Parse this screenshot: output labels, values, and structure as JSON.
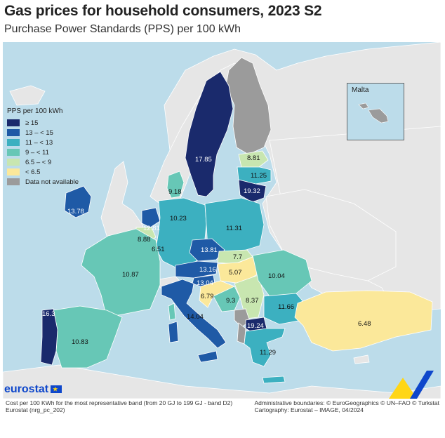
{
  "title": "Gas prices for household consumers, 2023 S2",
  "subtitle": "Purchase Power Standards (PPS) per 100 kWh",
  "legend": {
    "title": "PPS per 100 kWh",
    "items": [
      {
        "label": "≥ 15",
        "color": "#1a2a6c"
      },
      {
        "label": "13 – < 15",
        "color": "#1f5aa6"
      },
      {
        "label": "11 – < 13",
        "color": "#3cb0c0"
      },
      {
        "label": "9 – < 11",
        "color": "#67c7b6"
      },
      {
        "label": "6.5 – < 9",
        "color": "#c8e6b0"
      },
      {
        "label": "< 6.5",
        "color": "#fbe89a"
      },
      {
        "label": "Data not available",
        "color": "#9b9b9b"
      }
    ]
  },
  "inset": {
    "label": "Malta"
  },
  "values": {
    "sweden": "17.85",
    "estonia": "8.81",
    "latvia": "11.25",
    "lithuania": "19.32",
    "denmark": "9.18",
    "ireland": "13.78",
    "netherlands": "12.81",
    "belgium": "8.88",
    "luxembourg": "6.51",
    "germany": "10.23",
    "poland": "11.31",
    "czechia": "13.81",
    "slovakia": "7.7",
    "austria": "13.16",
    "hungary": "5.07",
    "slovenia": "13.04",
    "croatia": "6.79",
    "bosnia": "9.3",
    "serbia": "8.37",
    "romania": "10.04",
    "bulgaria": "11.66",
    "north_macedonia": "19.24",
    "greece": "11.29",
    "france": "10.87",
    "portugal": "16.3",
    "spain": "10.83",
    "italy": "14.04",
    "turkiye": "6.48"
  },
  "footer": {
    "left_line1": "Cost per 100 KWh for the most representative band (from 20 GJ to 199 GJ - band D2)",
    "left_line2": "Eurostat (nrg_pc_202)",
    "right_line1": "Administrative boundaries: © EuroGeographics © UN–FAO © Turkstat",
    "right_line2": "Cartography: Eurostat – IMAGE, 04/2024"
  },
  "logo": {
    "text": "eurostat"
  }
}
